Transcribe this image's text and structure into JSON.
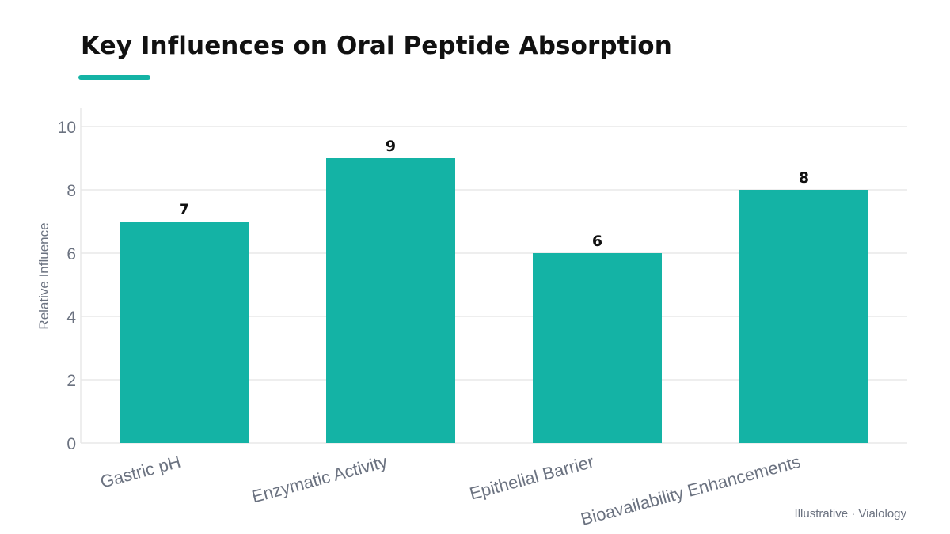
{
  "chart_data": {
    "type": "bar",
    "title": "Key Influences on Oral Peptide Absorption",
    "ylabel": "Relative Influence",
    "xlabel": "",
    "categories": [
      "Gastric pH",
      "Enzymatic Activity",
      "Epithelial Barrier",
      "Bioavailability Enhancements"
    ],
    "values": [
      7,
      9,
      6,
      8
    ],
    "ylim": [
      0,
      10
    ],
    "yticks": [
      0,
      2,
      4,
      6,
      8,
      10
    ],
    "grid": true,
    "bar_color": "#14b3a5",
    "data_labels": true
  },
  "footer": "Illustrative · Vialology",
  "colors": {
    "accent": "#14b3a5",
    "grid": "#e8e8e8"
  }
}
